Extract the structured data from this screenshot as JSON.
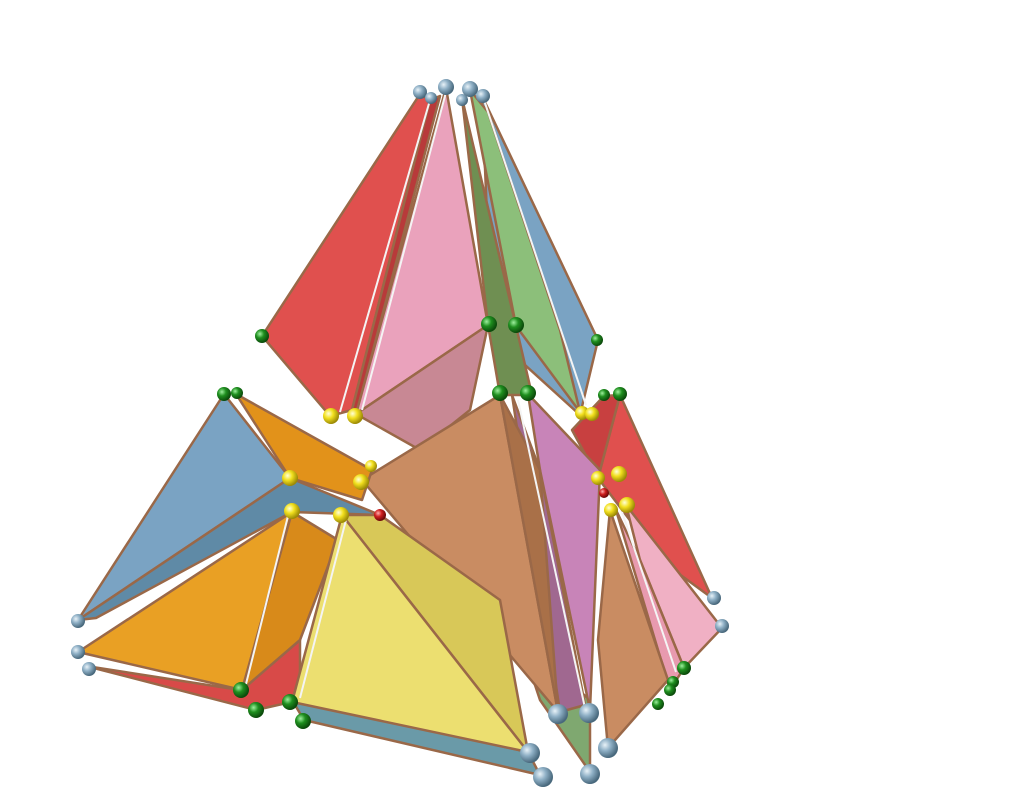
{
  "scene": {
    "kind": "3d-render-polyhedron-arrangement",
    "background": "#ffffff",
    "face_colors": {
      "red": "#e0504e",
      "pink": "#eaa2bc",
      "green": "#8cbf7a",
      "blue": "#7aa3c3",
      "orange": "#e9a024",
      "yellow": "#ecdf70",
      "brown": "#c98c62",
      "magenta": "#c884b8",
      "steel": "#6d96ad"
    },
    "vertex_colors": {
      "grey": "#8fb0c6",
      "green": "#1f8f1f",
      "yellow": "#f0e020",
      "red": "#d02020"
    },
    "edge_color": "#9a6848"
  }
}
